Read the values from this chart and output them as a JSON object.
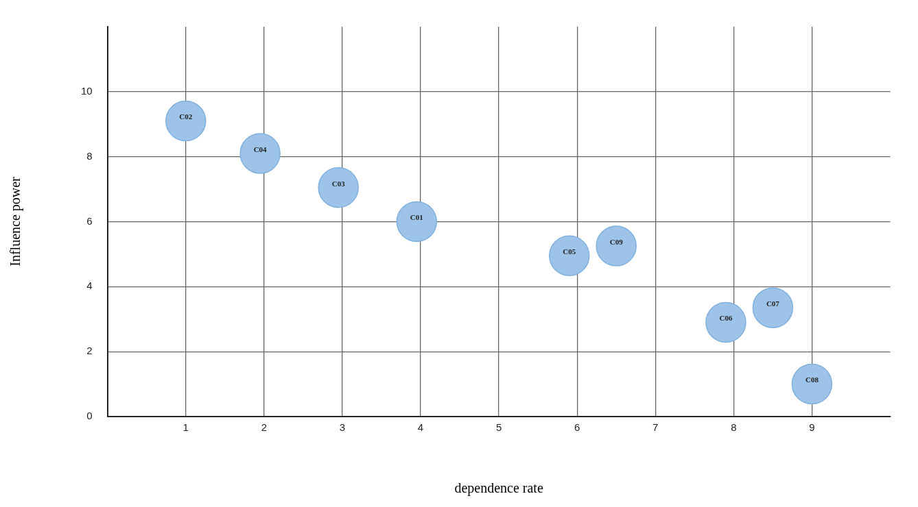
{
  "chart_data": {
    "type": "scatter",
    "xlabel": "dependence rate",
    "ylabel": "Influence power",
    "x": [
      1,
      1.95,
      2.95,
      3.95,
      5.9,
      6.5,
      7.9,
      8.5,
      9
    ],
    "values": [
      9.1,
      8.1,
      7.05,
      6,
      4.95,
      5.25,
      2.9,
      3.35,
      1
    ],
    "color": "#9dc3e8",
    "marker": "circle",
    "grid": true,
    "xlim": [
      0,
      10
    ],
    "xticks": [
      1,
      2,
      3,
      4,
      5,
      6,
      7,
      8,
      9
    ],
    "ylim": [
      0,
      12
    ],
    "yticks": [
      0,
      2,
      4,
      6,
      8,
      10
    ],
    "annotations": [
      {
        "text": "C02",
        "x": 1,
        "y": 9.1
      },
      {
        "text": "C04",
        "x": 1.95,
        "y": 8.1
      },
      {
        "text": "C03",
        "x": 2.95,
        "y": 7.05
      },
      {
        "text": "C01",
        "x": 3.95,
        "y": 6
      },
      {
        "text": "C05",
        "x": 5.9,
        "y": 4.95
      },
      {
        "text": "C09",
        "x": 6.5,
        "y": 5.25
      },
      {
        "text": "C06",
        "x": 7.9,
        "y": 2.9
      },
      {
        "text": "C07",
        "x": 8.5,
        "y": 3.35
      },
      {
        "text": "C08",
        "x": 9,
        "y": 1
      }
    ]
  }
}
